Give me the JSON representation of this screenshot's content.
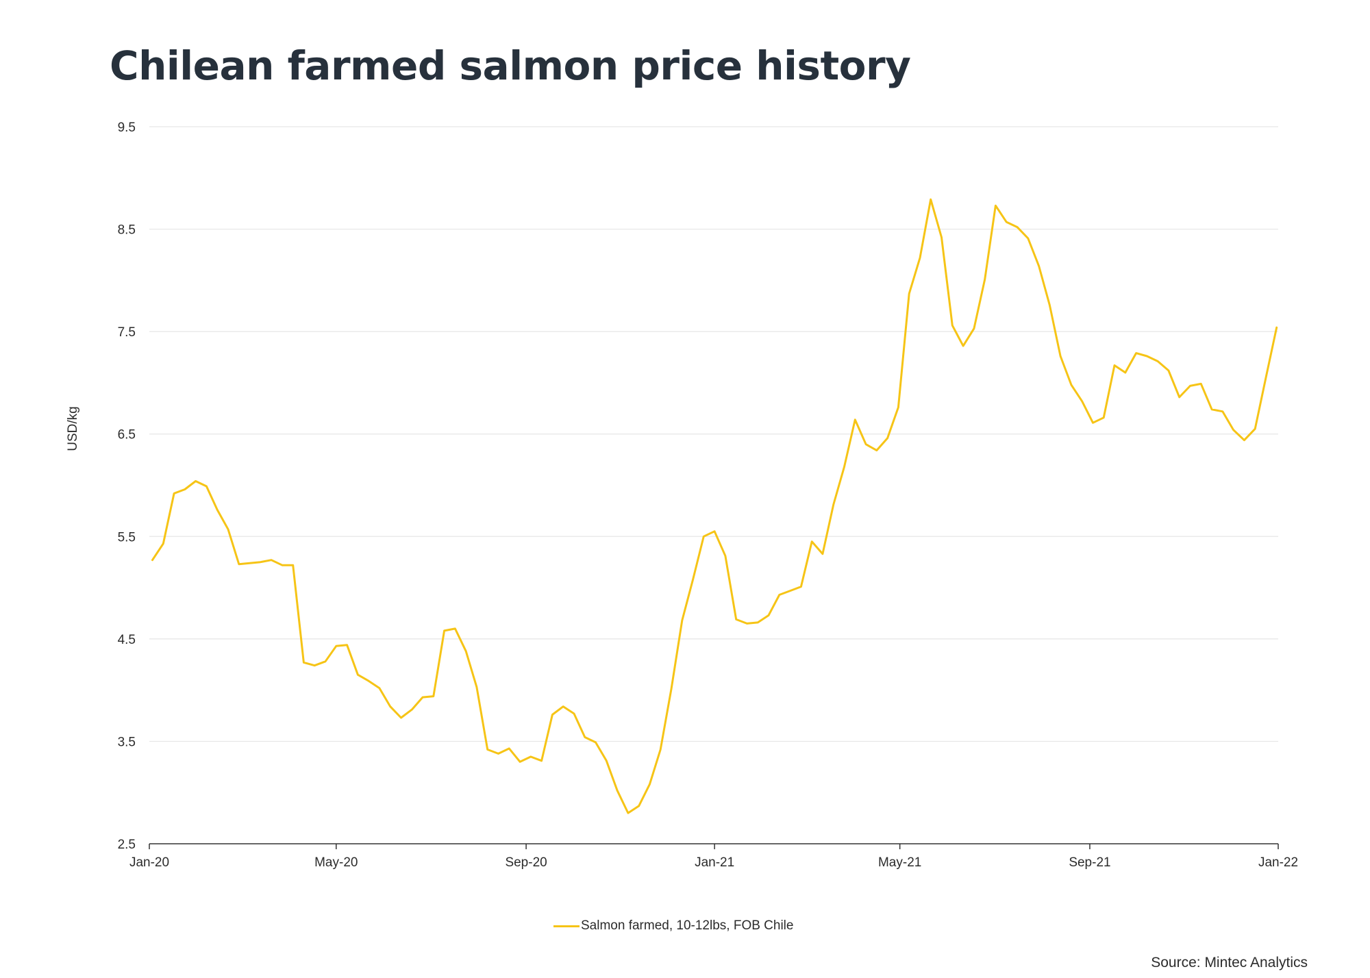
{
  "title": "Chilean farmed salmon price history",
  "source": "Source: Mintec Analytics",
  "colors": {
    "series": "#f6c416",
    "grid": "#e6e6e6",
    "axis": "#333333",
    "text": "#27313c"
  },
  "chart_data": {
    "type": "line",
    "ylabel": "USD/kg",
    "xlabel": "",
    "ylim": [
      2.5,
      9.5
    ],
    "yticks": [
      2.5,
      3.5,
      4.5,
      5.5,
      6.5,
      7.5,
      8.5,
      9.5
    ],
    "ytick_labels": [
      "2.5",
      "3.5",
      "4.5",
      "5.5",
      "6.5",
      "7.5",
      "8.5",
      "9.5"
    ],
    "xlim": [
      "2020-01-01",
      "2022-01-01"
    ],
    "xticks": [
      "2020-01-01",
      "2020-05-01",
      "2020-09-01",
      "2021-01-01",
      "2021-05-01",
      "2021-09-01",
      "2022-01-01"
    ],
    "xtick_labels": [
      "Jan-20",
      "May-20",
      "Sep-20",
      "Jan-21",
      "May-21",
      "Sep-21",
      "Jan-22"
    ],
    "grid": true,
    "legend_position": "bottom-center",
    "series": [
      {
        "name": "Salmon farmed, 10-12lbs, FOB Chile",
        "color": "#f6c416",
        "points": [
          [
            "2020-01-03",
            5.27
          ],
          [
            "2020-01-10",
            5.43
          ],
          [
            "2020-01-17",
            5.92
          ],
          [
            "2020-01-24",
            5.96
          ],
          [
            "2020-01-31",
            6.04
          ],
          [
            "2020-02-07",
            5.99
          ],
          [
            "2020-02-14",
            5.76
          ],
          [
            "2020-02-21",
            5.57
          ],
          [
            "2020-02-28",
            5.23
          ],
          [
            "2020-03-06",
            5.24
          ],
          [
            "2020-03-13",
            5.25
          ],
          [
            "2020-03-20",
            5.27
          ],
          [
            "2020-03-27",
            5.22
          ],
          [
            "2020-04-03",
            5.22
          ],
          [
            "2020-04-10",
            4.27
          ],
          [
            "2020-04-17",
            4.24
          ],
          [
            "2020-04-24",
            4.28
          ],
          [
            "2020-05-01",
            4.43
          ],
          [
            "2020-05-08",
            4.44
          ],
          [
            "2020-05-15",
            4.15
          ],
          [
            "2020-05-22",
            4.09
          ],
          [
            "2020-05-29",
            4.02
          ],
          [
            "2020-06-05",
            3.84
          ],
          [
            "2020-06-12",
            3.73
          ],
          [
            "2020-06-19",
            3.81
          ],
          [
            "2020-06-26",
            3.93
          ],
          [
            "2020-07-03",
            3.94
          ],
          [
            "2020-07-10",
            4.58
          ],
          [
            "2020-07-17",
            4.6
          ],
          [
            "2020-07-24",
            4.38
          ],
          [
            "2020-07-31",
            4.03
          ],
          [
            "2020-08-07",
            3.42
          ],
          [
            "2020-08-14",
            3.38
          ],
          [
            "2020-08-21",
            3.43
          ],
          [
            "2020-08-28",
            3.3
          ],
          [
            "2020-09-04",
            3.35
          ],
          [
            "2020-09-11",
            3.31
          ],
          [
            "2020-09-18",
            3.76
          ],
          [
            "2020-09-25",
            3.84
          ],
          [
            "2020-10-02",
            3.77
          ],
          [
            "2020-10-09",
            3.54
          ],
          [
            "2020-10-16",
            3.49
          ],
          [
            "2020-10-23",
            3.31
          ],
          [
            "2020-10-30",
            3.02
          ],
          [
            "2020-11-06",
            2.8
          ],
          [
            "2020-11-13",
            2.87
          ],
          [
            "2020-11-20",
            3.08
          ],
          [
            "2020-11-27",
            3.42
          ],
          [
            "2020-12-04",
            4.01
          ],
          [
            "2020-12-11",
            4.68
          ],
          [
            "2020-12-18",
            5.08
          ],
          [
            "2020-12-25",
            5.5
          ],
          [
            "2021-01-01",
            5.55
          ],
          [
            "2021-01-08",
            5.31
          ],
          [
            "2021-01-15",
            4.69
          ],
          [
            "2021-01-22",
            4.65
          ],
          [
            "2021-01-29",
            4.66
          ],
          [
            "2021-02-05",
            4.73
          ],
          [
            "2021-02-12",
            4.93
          ],
          [
            "2021-02-19",
            4.97
          ],
          [
            "2021-02-26",
            5.01
          ],
          [
            "2021-03-05",
            5.45
          ],
          [
            "2021-03-12",
            5.33
          ],
          [
            "2021-03-19",
            5.81
          ],
          [
            "2021-03-26",
            6.18
          ],
          [
            "2021-04-02",
            6.64
          ],
          [
            "2021-04-09",
            6.4
          ],
          [
            "2021-04-16",
            6.34
          ],
          [
            "2021-04-23",
            6.46
          ],
          [
            "2021-04-30",
            6.76
          ],
          [
            "2021-05-07",
            7.87
          ],
          [
            "2021-05-14",
            8.22
          ],
          [
            "2021-05-21",
            8.79
          ],
          [
            "2021-05-28",
            8.42
          ],
          [
            "2021-06-04",
            7.56
          ],
          [
            "2021-06-11",
            7.36
          ],
          [
            "2021-06-18",
            7.53
          ],
          [
            "2021-06-25",
            8.01
          ],
          [
            "2021-07-02",
            8.73
          ],
          [
            "2021-07-09",
            8.57
          ],
          [
            "2021-07-16",
            8.52
          ],
          [
            "2021-07-23",
            8.41
          ],
          [
            "2021-07-30",
            8.14
          ],
          [
            "2021-08-06",
            7.76
          ],
          [
            "2021-08-13",
            7.26
          ],
          [
            "2021-08-20",
            6.98
          ],
          [
            "2021-08-27",
            6.82
          ],
          [
            "2021-09-03",
            6.61
          ],
          [
            "2021-09-10",
            6.66
          ],
          [
            "2021-09-17",
            7.17
          ],
          [
            "2021-09-24",
            7.1
          ],
          [
            "2021-10-01",
            7.29
          ],
          [
            "2021-10-08",
            7.26
          ],
          [
            "2021-10-15",
            7.21
          ],
          [
            "2021-10-22",
            7.12
          ],
          [
            "2021-10-29",
            6.86
          ],
          [
            "2021-11-05",
            6.97
          ],
          [
            "2021-11-12",
            6.99
          ],
          [
            "2021-11-19",
            6.74
          ],
          [
            "2021-11-26",
            6.72
          ],
          [
            "2021-12-03",
            6.54
          ],
          [
            "2021-12-10",
            6.44
          ],
          [
            "2021-12-17",
            6.55
          ],
          [
            "2021-12-24",
            7.05
          ],
          [
            "2021-12-31",
            7.54
          ]
        ]
      }
    ]
  }
}
